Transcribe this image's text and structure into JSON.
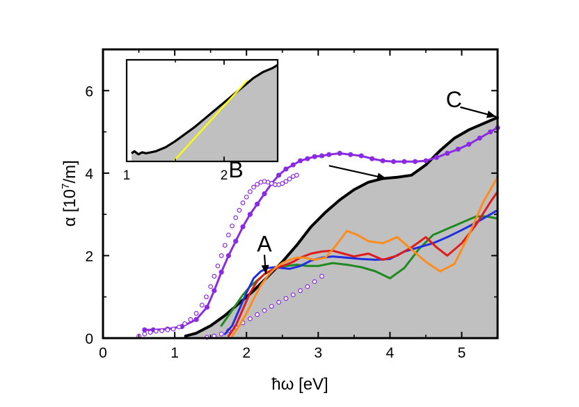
{
  "chart_data": {
    "type": "line",
    "xlabel": "ħω [eV]",
    "ylabel_parts": {
      "prefix": "α [10",
      "exp": "7",
      "suffix": "/m]"
    },
    "xlim": [
      0,
      5.5
    ],
    "ylim": [
      0,
      7
    ],
    "xticks": [
      "0",
      "1",
      "2",
      "3",
      "4",
      "5"
    ],
    "yticks": [
      "0",
      "2",
      "4",
      "6"
    ],
    "colors": {
      "black": "#000000",
      "violet": "#8a2be2",
      "green": "#1f8a1f",
      "blue": "#1f2fe0",
      "red": "#e01b1b",
      "orange": "#ff8c1a",
      "fill": "#c0c0c0",
      "yellow": "#ffff00"
    },
    "area": {
      "name": "shaded-absorption",
      "x": [
        1.15,
        1.3,
        1.5,
        1.7,
        1.9,
        2.1,
        2.3,
        2.5,
        2.7,
        2.9,
        3.1,
        3.3,
        3.5,
        3.7,
        3.9,
        4.1,
        4.3,
        4.5,
        4.7,
        4.9,
        5.1,
        5.3,
        5.5
      ],
      "y": [
        0.05,
        0.12,
        0.3,
        0.55,
        0.85,
        1.15,
        1.5,
        1.85,
        2.25,
        2.7,
        3.05,
        3.35,
        3.6,
        3.78,
        3.87,
        3.9,
        3.95,
        4.2,
        4.55,
        4.85,
        5.05,
        5.2,
        5.35
      ]
    },
    "series": [
      {
        "name": "black",
        "color_key": "black",
        "style": "line",
        "width": 4,
        "x": [
          1.15,
          1.3,
          1.5,
          1.7,
          1.9,
          2.1,
          2.3,
          2.5,
          2.7,
          2.9,
          3.1,
          3.3,
          3.5,
          3.7,
          3.9,
          4.1,
          4.3,
          4.5,
          4.7,
          4.9,
          5.1,
          5.3,
          5.5
        ],
        "y": [
          0.05,
          0.12,
          0.3,
          0.55,
          0.85,
          1.15,
          1.5,
          1.85,
          2.25,
          2.7,
          3.05,
          3.35,
          3.6,
          3.78,
          3.87,
          3.9,
          3.95,
          4.2,
          4.55,
          4.85,
          5.05,
          5.2,
          5.35
        ]
      },
      {
        "name": "violet-filled",
        "color_key": "violet",
        "style": "line-dots",
        "width": 3,
        "x": [
          0.58,
          0.7,
          0.9,
          1.1,
          1.3,
          1.45,
          1.55,
          1.65,
          1.75,
          1.85,
          1.95,
          2.05,
          2.15,
          2.25,
          2.35,
          2.45,
          2.55,
          2.65,
          2.75,
          2.85,
          2.95,
          3.05,
          3.15,
          3.3,
          3.45,
          3.6,
          3.75,
          3.9,
          4.05,
          4.2,
          4.35,
          4.5,
          4.65,
          4.8,
          4.95,
          5.1,
          5.25,
          5.4,
          5.5
        ],
        "y": [
          0.2,
          0.2,
          0.22,
          0.28,
          0.45,
          0.75,
          1.15,
          1.6,
          2.0,
          2.35,
          2.7,
          3.0,
          3.25,
          3.5,
          3.75,
          3.95,
          4.1,
          4.2,
          4.3,
          4.35,
          4.4,
          4.42,
          4.45,
          4.48,
          4.45,
          4.42,
          4.35,
          4.3,
          4.28,
          4.28,
          4.28,
          4.3,
          4.38,
          4.48,
          4.58,
          4.7,
          4.85,
          5.0,
          5.1
        ]
      },
      {
        "name": "violet-open-upper",
        "color_key": "violet",
        "style": "open-dots",
        "width": 1.2,
        "x": [
          0.5,
          0.58,
          0.66,
          0.74,
          0.82,
          0.9,
          0.98,
          1.06,
          1.14,
          1.22,
          1.3,
          1.38,
          1.44,
          1.5,
          1.55,
          1.6,
          1.65,
          1.7,
          1.75,
          1.8,
          1.85,
          1.9,
          1.95,
          2.0,
          2.05,
          2.1,
          2.15,
          2.2,
          2.25,
          2.3,
          2.35,
          2.4,
          2.45,
          2.5,
          2.55,
          2.6,
          2.65,
          2.7
        ],
        "y": [
          0.05,
          0.1,
          0.14,
          0.17,
          0.18,
          0.2,
          0.22,
          0.27,
          0.35,
          0.45,
          0.6,
          0.8,
          1.0,
          1.25,
          1.5,
          1.75,
          2.0,
          2.25,
          2.5,
          2.72,
          2.92,
          3.1,
          3.28,
          3.42,
          3.55,
          3.66,
          3.73,
          3.78,
          3.8,
          3.78,
          3.75,
          3.72,
          3.72,
          3.75,
          3.8,
          3.86,
          3.92,
          3.95
        ]
      },
      {
        "name": "violet-open-lower",
        "color_key": "violet",
        "style": "open-dots",
        "width": 1.2,
        "x": [
          1.45,
          1.55,
          1.65,
          1.75,
          1.85,
          1.95,
          2.05,
          2.15,
          2.25,
          2.35,
          2.45,
          2.55,
          2.65,
          2.75,
          2.85,
          2.95,
          3.05
        ],
        "y": [
          0.02,
          0.05,
          0.1,
          0.18,
          0.27,
          0.37,
          0.47,
          0.57,
          0.67,
          0.77,
          0.87,
          0.96,
          1.05,
          1.15,
          1.25,
          1.37,
          1.5
        ]
      },
      {
        "name": "green",
        "color_key": "green",
        "style": "line",
        "width": 3,
        "x": [
          1.65,
          1.75,
          1.85,
          1.95,
          2.05,
          2.15,
          2.25,
          2.35,
          2.45,
          2.55,
          2.7,
          2.85,
          3.0,
          3.2,
          3.4,
          3.6,
          3.8,
          4.0,
          4.2,
          4.4,
          4.6,
          4.8,
          5.0,
          5.2,
          5.35,
          5.5
        ],
        "y": [
          0.3,
          0.55,
          0.8,
          1.05,
          1.25,
          1.4,
          1.55,
          1.65,
          1.72,
          1.75,
          1.78,
          1.75,
          1.75,
          1.82,
          1.78,
          1.72,
          1.62,
          1.45,
          1.7,
          2.15,
          2.5,
          2.65,
          2.8,
          2.95,
          2.95,
          2.9
        ]
      },
      {
        "name": "blue",
        "color_key": "blue",
        "style": "line",
        "width": 3,
        "x": [
          1.7,
          1.8,
          1.9,
          2.0,
          2.1,
          2.2,
          2.3,
          2.4,
          2.5,
          2.6,
          2.75,
          2.9,
          3.05,
          3.2,
          3.4,
          3.6,
          3.8,
          4.0,
          4.2,
          4.4,
          4.6,
          4.8,
          5.0,
          5.2,
          5.35,
          5.5
        ],
        "y": [
          0.1,
          0.3,
          0.7,
          1.1,
          1.45,
          1.62,
          1.7,
          1.72,
          1.7,
          1.68,
          1.75,
          1.88,
          1.95,
          1.98,
          1.95,
          1.92,
          1.9,
          1.92,
          2.1,
          2.2,
          2.3,
          2.45,
          2.62,
          2.8,
          2.95,
          3.1
        ]
      },
      {
        "name": "red",
        "color_key": "red",
        "style": "line",
        "width": 3,
        "x": [
          1.75,
          1.85,
          1.95,
          2.05,
          2.15,
          2.25,
          2.35,
          2.45,
          2.55,
          2.65,
          2.75,
          2.9,
          3.05,
          3.2,
          3.35,
          3.5,
          3.7,
          3.9,
          4.1,
          4.3,
          4.5,
          4.65,
          4.8,
          5.0,
          5.2,
          5.4,
          5.5
        ],
        "y": [
          0.05,
          0.3,
          0.7,
          1.1,
          1.38,
          1.55,
          1.65,
          1.72,
          1.78,
          1.85,
          1.95,
          2.05,
          2.1,
          2.12,
          2.05,
          1.98,
          2.05,
          1.9,
          2.0,
          2.2,
          2.45,
          2.2,
          2.0,
          2.3,
          2.75,
          3.3,
          3.55
        ]
      },
      {
        "name": "orange",
        "color_key": "orange",
        "style": "line",
        "width": 3,
        "x": [
          1.8,
          1.9,
          2.0,
          2.1,
          2.2,
          2.3,
          2.4,
          2.5,
          2.6,
          2.7,
          2.8,
          2.95,
          3.1,
          3.25,
          3.4,
          3.55,
          3.7,
          3.9,
          4.1,
          4.3,
          4.5,
          4.7,
          4.9,
          5.1,
          5.3,
          5.5
        ],
        "y": [
          0.05,
          0.3,
          0.6,
          0.95,
          1.28,
          1.52,
          1.7,
          1.82,
          1.9,
          1.95,
          1.95,
          1.9,
          1.95,
          2.25,
          2.6,
          2.5,
          2.35,
          2.3,
          2.45,
          2.15,
          1.85,
          1.62,
          1.8,
          2.5,
          3.3,
          3.9
        ]
      }
    ],
    "annotations": [
      {
        "label": "A",
        "name": "label-A",
        "text_x": 2.25,
        "text_y": 2.1,
        "arrow_from": [
          2.25,
          2.02
        ],
        "arrow_to": [
          2.27,
          1.55
        ]
      },
      {
        "label": "B",
        "name": "label-B",
        "text_x": 1.75,
        "text_y": 3.9,
        "arrow_from": [
          3.15,
          4.18
        ],
        "arrow_to": [
          3.95,
          3.87
        ]
      },
      {
        "label": "C",
        "name": "label-C",
        "text_x": 4.78,
        "text_y": 5.6,
        "arrow_from": [
          4.98,
          5.6
        ],
        "arrow_to": [
          5.48,
          5.37
        ]
      }
    ],
    "inset": {
      "xlim": [
        1.0,
        2.55
      ],
      "ylim": [
        0,
        1
      ],
      "xticks": [
        {
          "v": 1,
          "label": "1"
        },
        {
          "v": 2,
          "label": "2"
        }
      ],
      "area": {
        "x": [
          1.05,
          1.08,
          1.12,
          1.16,
          1.2,
          1.3,
          1.4,
          1.5,
          1.6,
          1.7,
          1.8,
          1.9,
          2.0,
          2.1,
          2.2,
          2.3,
          2.4,
          2.5,
          2.55
        ],
        "y": [
          0.08,
          0.1,
          0.07,
          0.09,
          0.08,
          0.1,
          0.14,
          0.2,
          0.27,
          0.34,
          0.42,
          0.5,
          0.58,
          0.66,
          0.74,
          0.82,
          0.88,
          0.92,
          0.95
        ]
      },
      "fit": {
        "x": [
          1.48,
          2.24
        ],
        "y": [
          0.0,
          0.8
        ]
      }
    }
  }
}
